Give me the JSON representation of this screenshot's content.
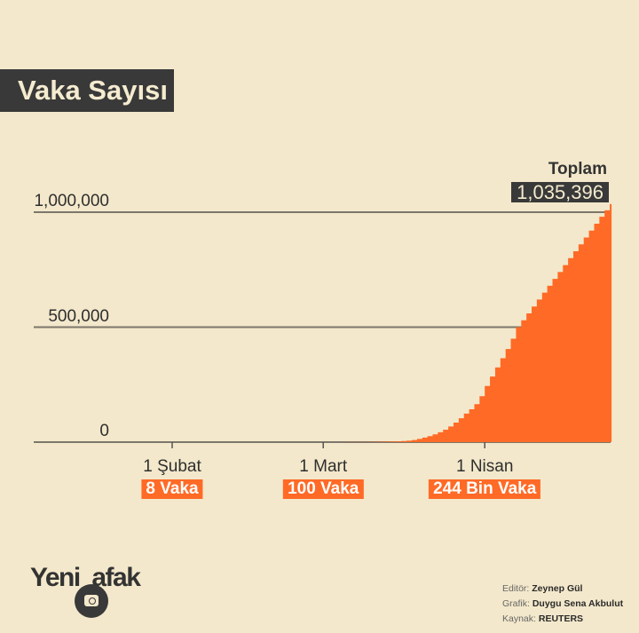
{
  "title": "Vaka Sayısı",
  "total": {
    "label": "Toplam",
    "value": "1,035,396"
  },
  "x_labels": [
    {
      "date": "2020-02-01",
      "label": "1 Şubat",
      "badge": "8 Vaka"
    },
    {
      "date": "2020-03-01",
      "label": "1 Mart",
      "badge": "100 Vaka"
    },
    {
      "date": "2020-04-01",
      "label": "1 Nisan",
      "badge": "244 Bin Vaka"
    }
  ],
  "logo": "YeniŞafak",
  "credits": [
    {
      "key": "Editör: ",
      "value": "Zeynep Gül"
    },
    {
      "key": "Grafik: ",
      "value": "Duygu Sena Akbulut"
    },
    {
      "key": "Kaynak: ",
      "value": "REUTERS"
    }
  ],
  "colors": {
    "fill": "#ff6a26",
    "background": "#f3e8cb",
    "dark": "#393939"
  },
  "chart_data": {
    "type": "area",
    "step": true,
    "title": "Vaka Sayısı",
    "ylim": [
      0,
      1000000
    ],
    "yticks": [
      {
        "value": 0,
        "label": "0"
      },
      {
        "value": 500000,
        "label": "500,000"
      },
      {
        "value": 1000000,
        "label": "1,000,000"
      }
    ],
    "grid": true,
    "points": [
      [
        "2020-01-22",
        1
      ],
      [
        "2020-02-01",
        8
      ],
      [
        "2020-02-15",
        15
      ],
      [
        "2020-02-29",
        70
      ],
      [
        "2020-03-01",
        100
      ],
      [
        "2020-03-02",
        120
      ],
      [
        "2020-03-03",
        150
      ],
      [
        "2020-03-04",
        200
      ],
      [
        "2020-03-05",
        250
      ],
      [
        "2020-03-06",
        350
      ],
      [
        "2020-03-07",
        450
      ],
      [
        "2020-03-08",
        550
      ],
      [
        "2020-03-09",
        700
      ],
      [
        "2020-03-10",
        1000
      ],
      [
        "2020-03-11",
        1300
      ],
      [
        "2020-03-12",
        1700
      ],
      [
        "2020-03-13",
        2200
      ],
      [
        "2020-03-14",
        2900
      ],
      [
        "2020-03-15",
        3500
      ],
      [
        "2020-03-16",
        4600
      ],
      [
        "2020-03-17",
        6400
      ],
      [
        "2020-03-18",
        9400
      ],
      [
        "2020-03-19",
        14000
      ],
      [
        "2020-03-20",
        19600
      ],
      [
        "2020-03-21",
        26000
      ],
      [
        "2020-03-22",
        34000
      ],
      [
        "2020-03-23",
        43000
      ],
      [
        "2020-03-24",
        54000
      ],
      [
        "2020-03-25",
        68000
      ],
      [
        "2020-03-26",
        85000
      ],
      [
        "2020-03-27",
        104000
      ],
      [
        "2020-03-28",
        124000
      ],
      [
        "2020-03-29",
        143000
      ],
      [
        "2020-03-30",
        165000
      ],
      [
        "2020-03-31",
        200000
      ],
      [
        "2020-04-01",
        244000
      ],
      [
        "2020-04-02",
        285000
      ],
      [
        "2020-04-03",
        325000
      ],
      [
        "2020-04-04",
        365000
      ],
      [
        "2020-04-05",
        405000
      ],
      [
        "2020-04-06",
        450000
      ],
      [
        "2020-04-07",
        500000
      ],
      [
        "2020-04-08",
        530000
      ],
      [
        "2020-04-09",
        560000
      ],
      [
        "2020-04-10",
        590000
      ],
      [
        "2020-04-11",
        620000
      ],
      [
        "2020-04-12",
        650000
      ],
      [
        "2020-04-13",
        680000
      ],
      [
        "2020-04-14",
        710000
      ],
      [
        "2020-04-15",
        740000
      ],
      [
        "2020-04-16",
        770000
      ],
      [
        "2020-04-17",
        800000
      ],
      [
        "2020-04-18",
        830000
      ],
      [
        "2020-04-19",
        860000
      ],
      [
        "2020-04-20",
        890000
      ],
      [
        "2020-04-21",
        920000
      ],
      [
        "2020-04-22",
        950000
      ],
      [
        "2020-04-23",
        980000
      ],
      [
        "2020-04-24",
        1008000
      ],
      [
        "2020-04-25",
        1035396
      ]
    ]
  }
}
